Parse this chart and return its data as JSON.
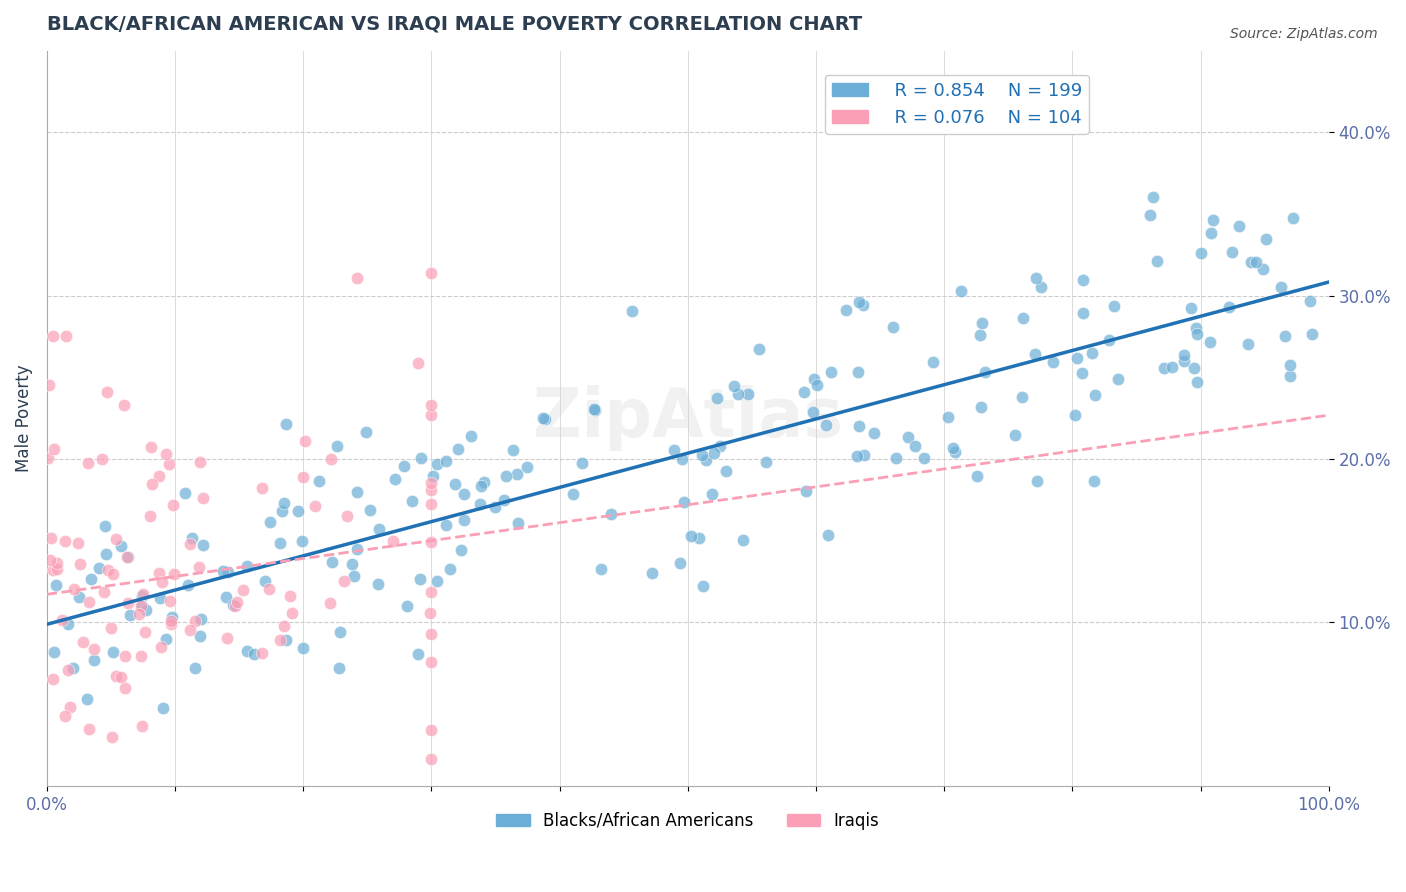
{
  "title": "BLACK/AFRICAN AMERICAN VS IRAQI MALE POVERTY CORRELATION CHART",
  "source": "Source: ZipAtlas.com",
  "ylabel": "Male Poverty",
  "xlabel": "",
  "xlim": [
    0,
    100
  ],
  "ylim": [
    0,
    45
  ],
  "yticks": [
    10,
    20,
    30,
    40
  ],
  "ytick_labels": [
    "10.0%",
    "20.0%",
    "30.0%",
    "40.0%"
  ],
  "xticks": [
    0,
    10,
    20,
    30,
    40,
    50,
    60,
    70,
    80,
    90,
    100
  ],
  "xtick_labels": [
    "0.0%",
    "",
    "",
    "",
    "",
    "",
    "",
    "",
    "",
    "",
    "100.0%"
  ],
  "blue_color": "#6baed6",
  "pink_color": "#fa9fb5",
  "blue_line_color": "#2171b5",
  "pink_line_color": "#fa9fb5",
  "legend_R_blue": "R = 0.854",
  "legend_N_blue": "N = 199",
  "legend_R_pink": "R = 0.076",
  "legend_N_pink": "N = 104",
  "legend_label_blue": "Blacks/African Americans",
  "legend_label_pink": "Iraqis",
  "watermark": "ZipAtlas",
  "blue_R": 0.854,
  "blue_N": 199,
  "pink_R": 0.076,
  "pink_N": 104,
  "title_color": "#2c3e50",
  "axis_label_color": "#5b6fa6",
  "tick_label_color": "#5b6fa6",
  "grid_color": "#cccccc",
  "background_color": "#ffffff"
}
